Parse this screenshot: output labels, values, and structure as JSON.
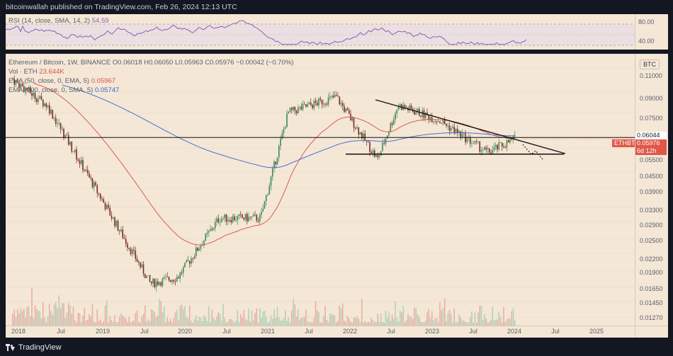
{
  "publisher": "bitcoinwallah published on TradingView.com, Feb 26, 2024 12:13 UTC",
  "brand": "TradingView",
  "rsi": {
    "label": "RSI (14, close, SMA, 14, 2)",
    "value": "54.59",
    "ticks": [
      "80.00",
      "40.00"
    ]
  },
  "legend": {
    "line1": "Ethereum / Bitcoin, 1W, BINANCE  O0.06018  H0.06050  L0.05963  C0.05976  −0.00042 (−0.70%)",
    "vol_label": "Vol · ETH",
    "vol_value": "23.644K",
    "ema50_label": "EMA (50, close, 0, EMA, 5)",
    "ema50_value": "0.05967",
    "ema200_label": "EMA (200, close, 0, SMA, 5)",
    "ema200_value": "0.05747"
  },
  "price_axis": {
    "unit": "BTC",
    "ticks": [
      "0.11000",
      "0.09000",
      "0.07500",
      "0.06044",
      "0.05500",
      "0.04500",
      "0.03900",
      "0.03300",
      "0.02900",
      "0.02500",
      "0.02200",
      "0.01900",
      "0.01650",
      "0.01450",
      "0.01270"
    ],
    "level_tag": "0.06044",
    "price_tag": "0.05976",
    "time_tag": "6d 12h",
    "symbol_tag": "ETHBTC"
  },
  "time_axis": [
    "2018",
    "Jul",
    "2019",
    "Jul",
    "2020",
    "Jul",
    "2021",
    "Jul",
    "2022",
    "Jul",
    "2023",
    "Jul",
    "2024",
    "Jul",
    "2025"
  ],
  "colors": {
    "background": "#f4e7d6",
    "frame": "#131722",
    "candle_up": "#3a8a56",
    "candle_down": "#7a2a1f",
    "ema50": "#e05a4e",
    "ema200": "#4a6fd6",
    "rsi_line": "#8b5fb3"
  },
  "chart_data": {
    "type": "candlestick",
    "title": "Ethereum / Bitcoin, 1W, BINANCE",
    "y_scale": "log",
    "ylim": [
      0.0118,
      0.125
    ],
    "key_price": 0.06044,
    "support": 0.0523,
    "key_points": [
      {
        "date": "2018-01",
        "price": 0.1
      },
      {
        "date": "2018-06",
        "price": 0.08
      },
      {
        "date": "2019-09",
        "price": 0.017
      },
      {
        "date": "2020-01",
        "price": 0.018
      },
      {
        "date": "2020-07",
        "price": 0.03
      },
      {
        "date": "2021-01",
        "price": 0.03
      },
      {
        "date": "2021-05",
        "price": 0.075
      },
      {
        "date": "2021-12",
        "price": 0.086
      },
      {
        "date": "2022-06",
        "price": 0.05
      },
      {
        "date": "2022-09",
        "price": 0.08
      },
      {
        "date": "2023-03",
        "price": 0.07
      },
      {
        "date": "2023-10",
        "price": 0.053
      },
      {
        "date": "2024-02",
        "price": 0.0598
      }
    ]
  }
}
